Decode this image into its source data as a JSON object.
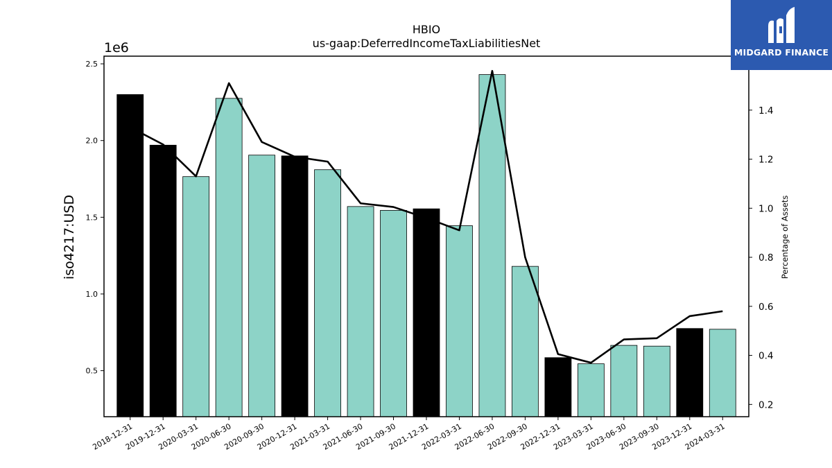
{
  "chart_data": {
    "type": "bar",
    "title": "HBIO",
    "subtitle": "us-gaap:DeferredIncomeTaxLiabilitiesNet",
    "ylabel": "iso4217:USD",
    "y2label": "Percentage of Assets",
    "y_offset_label": "1e6",
    "ylim": [
      200000,
      2550000
    ],
    "y2lim": [
      0.15,
      1.62
    ],
    "yticks": [
      "0.5",
      "1.0",
      "1.5",
      "2.0",
      "2.5"
    ],
    "yticks_values": [
      500000,
      1000000,
      1500000,
      2000000,
      2500000
    ],
    "y2ticks": [
      "0.2",
      "0.4",
      "0.6",
      "0.8",
      "1.0",
      "1.2",
      "1.4"
    ],
    "y2ticks_values": [
      0.2,
      0.4,
      0.6,
      0.8,
      1.0,
      1.2,
      1.4
    ],
    "categories": [
      "2018-12-31",
      "2019-12-31",
      "2020-03-31",
      "2020-06-30",
      "2020-09-30",
      "2020-12-31",
      "2021-03-31",
      "2021-06-30",
      "2021-09-30",
      "2021-12-31",
      "2022-03-31",
      "2022-06-30",
      "2022-09-30",
      "2022-12-31",
      "2023-03-31",
      "2023-06-30",
      "2023-09-30",
      "2023-12-31",
      "2024-03-31"
    ],
    "series": [
      {
        "kind": "bar",
        "values": [
          2300000,
          1970000,
          1765000,
          2275000,
          1905000,
          1900000,
          1810000,
          1570000,
          1545000,
          1555000,
          1445000,
          2430000,
          1180000,
          585000,
          545000,
          665000,
          660000,
          775000,
          770000
        ],
        "colors": [
          "#000000",
          "#000000",
          "#8dd3c7",
          "#8dd3c7",
          "#8dd3c7",
          "#000000",
          "#8dd3c7",
          "#8dd3c7",
          "#8dd3c7",
          "#000000",
          "#8dd3c7",
          "#8dd3c7",
          "#8dd3c7",
          "#000000",
          "#8dd3c7",
          "#8dd3c7",
          "#8dd3c7",
          "#000000",
          "#8dd3c7"
        ]
      },
      {
        "kind": "line",
        "axis": "right",
        "values": [
          1.33,
          1.26,
          1.13,
          1.51,
          1.27,
          1.21,
          1.19,
          1.02,
          1.005,
          0.96,
          0.91,
          1.56,
          0.8,
          0.405,
          0.37,
          0.465,
          0.47,
          0.56,
          0.58
        ],
        "color": "#000000"
      }
    ],
    "grid": false
  },
  "logo": {
    "text": "MIDGARD FINANCE",
    "background": "#2c5ab0"
  }
}
